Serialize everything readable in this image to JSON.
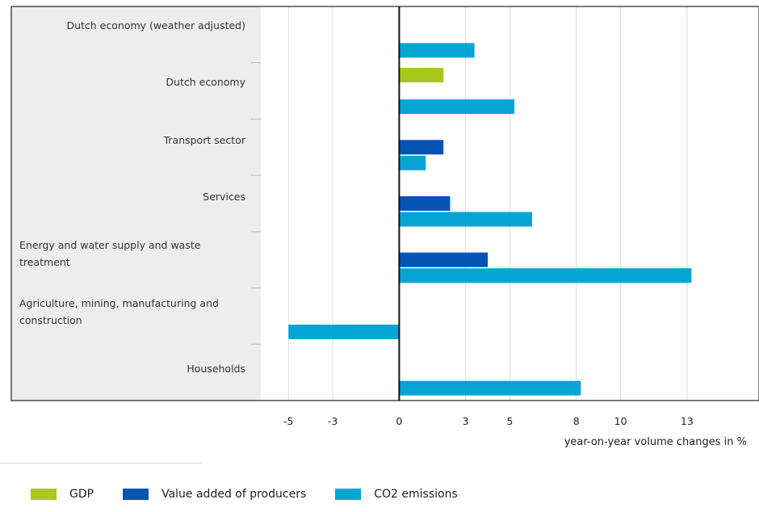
{
  "chart_data": {
    "type": "bar",
    "orientation": "horizontal",
    "categories": [
      "Dutch economy (weather adjusted)",
      "Dutch economy",
      "Transport sector",
      "Services",
      "Energy and water supply and waste treatment",
      "Agriculture, mining, manufacturing and construction",
      "Households"
    ],
    "series": [
      {
        "name": "GDP",
        "color": "#a8c81e",
        "values": [
          null,
          2.0,
          null,
          null,
          null,
          null,
          null
        ]
      },
      {
        "name": "Value added of producers",
        "color": "#0454b5",
        "values": [
          null,
          null,
          2.0,
          2.3,
          4.0,
          null,
          null
        ]
      },
      {
        "name": "CO2 emissions",
        "color": "#04a4d4",
        "values": [
          3.4,
          5.2,
          1.2,
          6.0,
          13.2,
          -5.0,
          8.2
        ]
      }
    ],
    "xlabel": "year-on-year volume changes in %",
    "xticks": [
      "-5",
      "-3",
      "0",
      "3",
      "5",
      "8",
      "10",
      "13"
    ],
    "xlim": [
      -6.25,
      16.25
    ],
    "grid": true,
    "legend_position": "bottom-left"
  }
}
